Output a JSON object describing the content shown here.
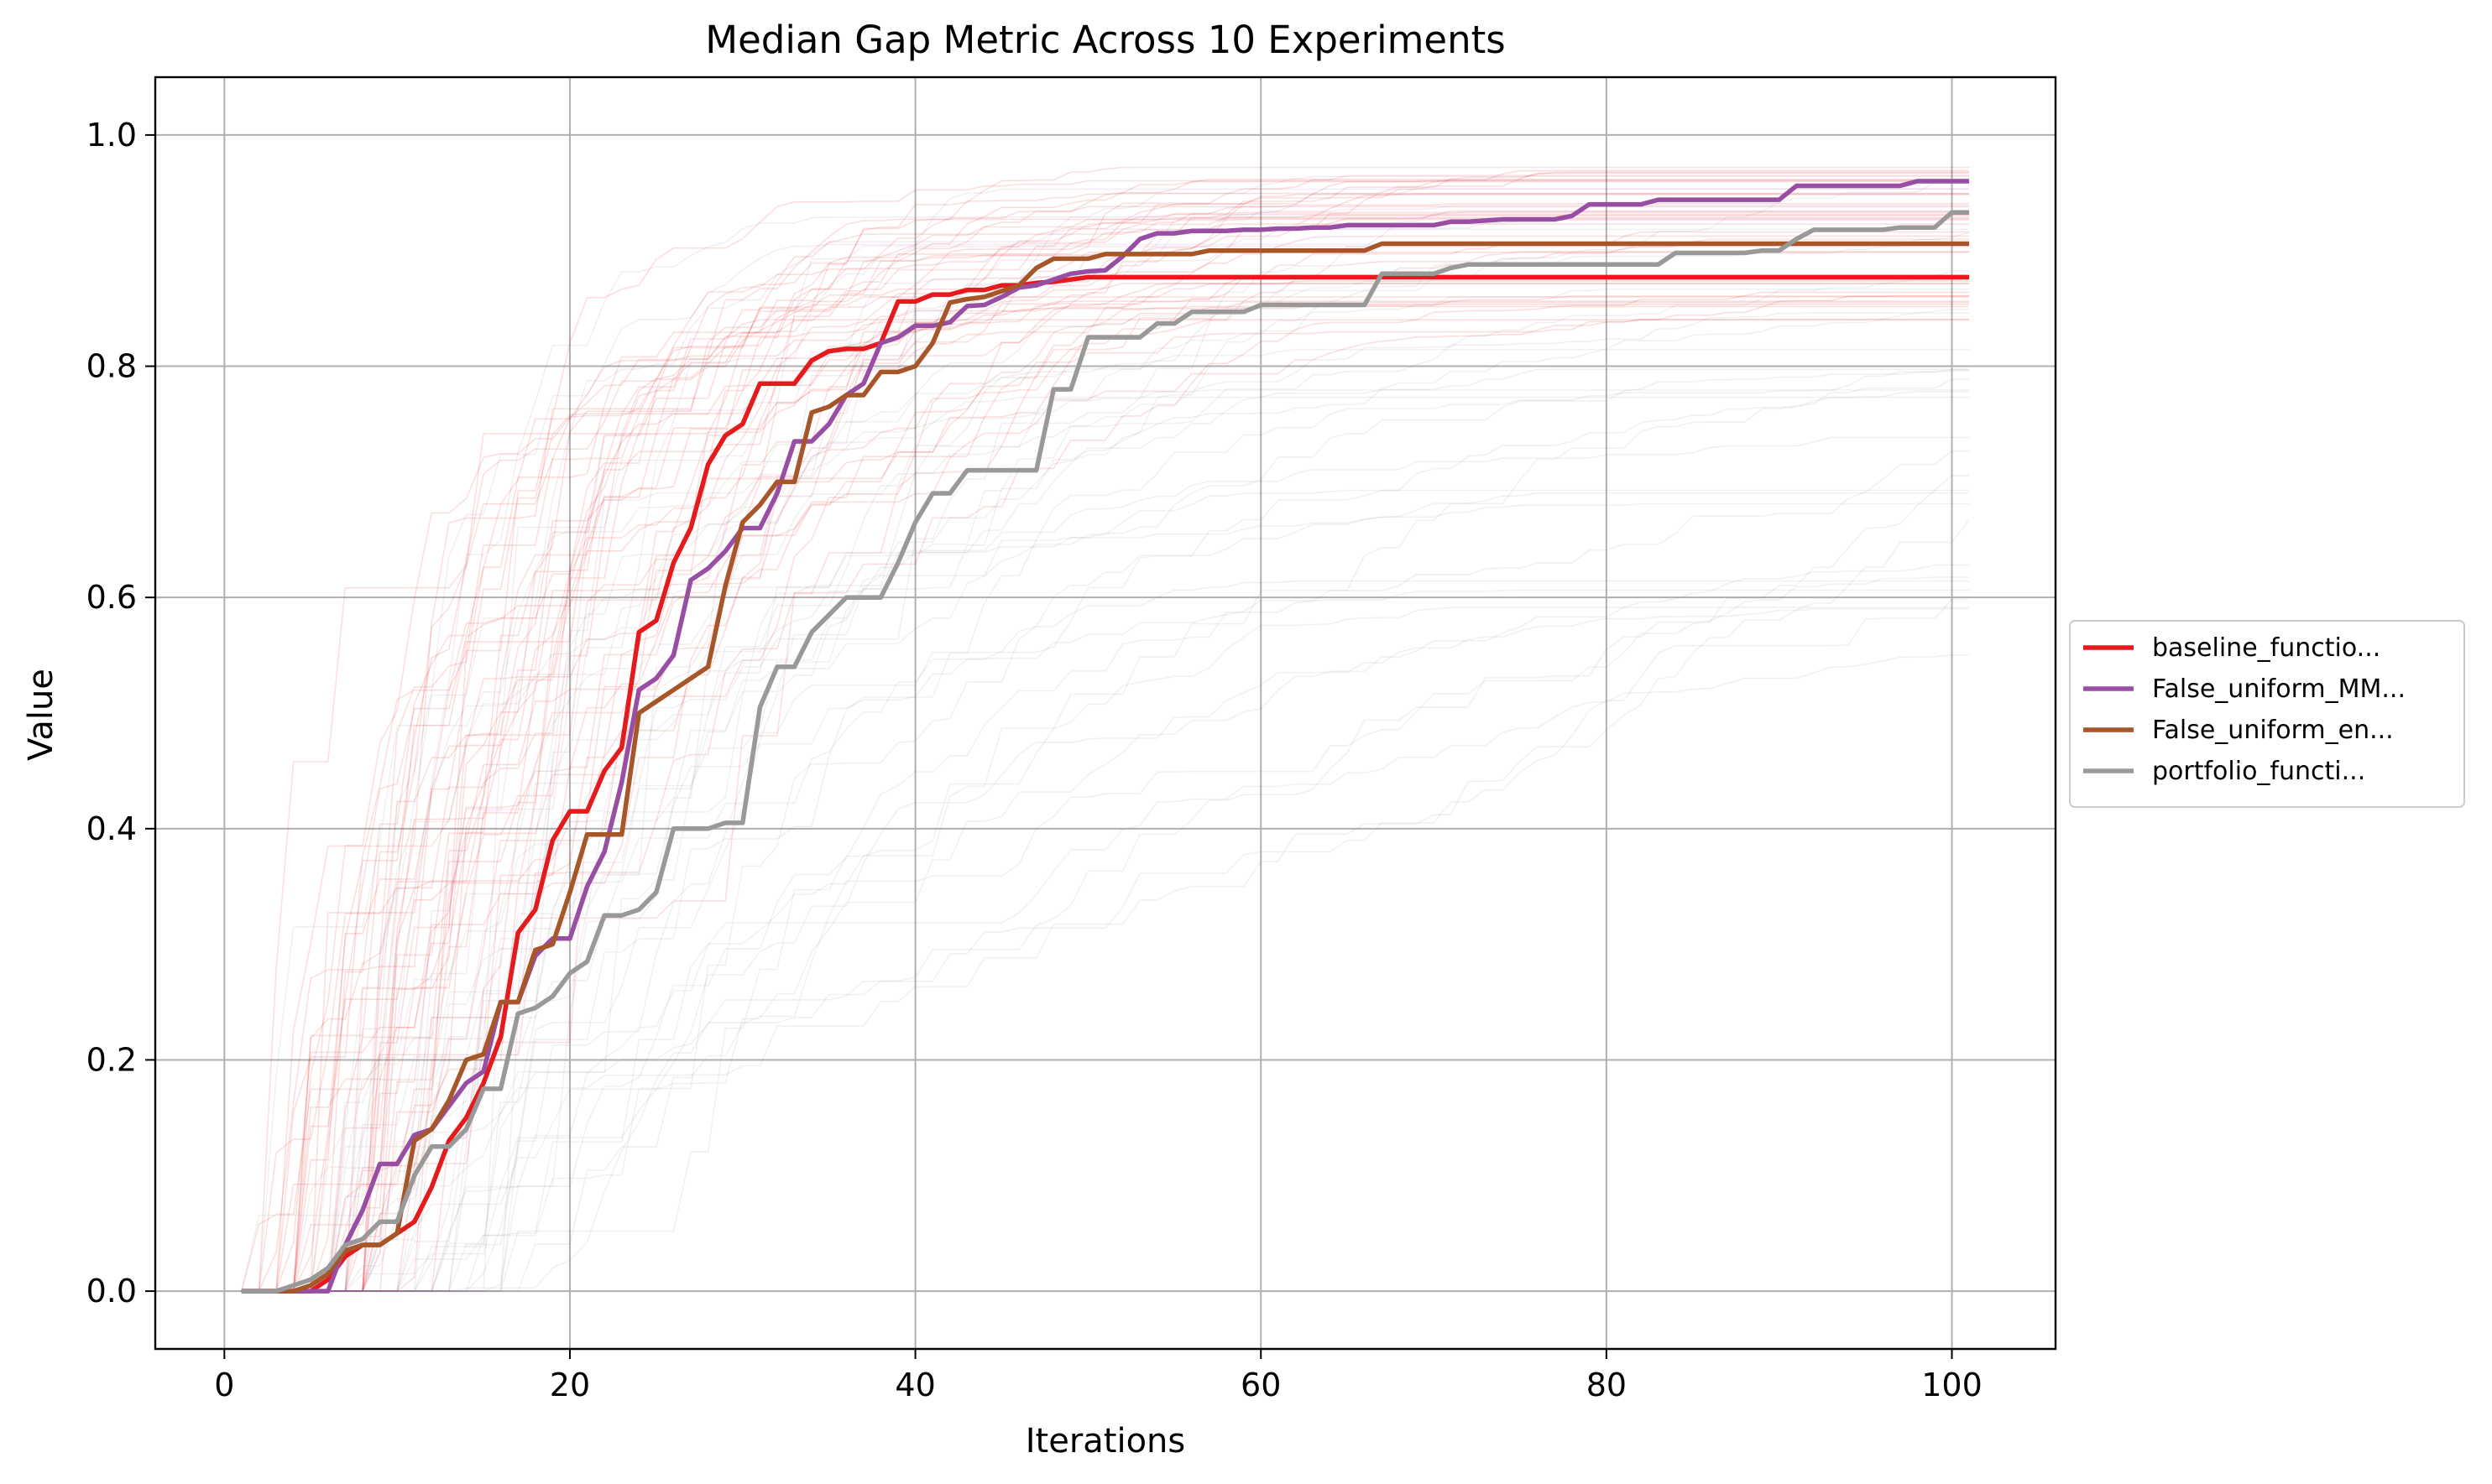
{
  "chart_data": {
    "type": "line",
    "title": "Median Gap Metric Across 10 Experiments",
    "xlabel": "Iterations",
    "ylabel": "Value",
    "xlim": [
      -4,
      106
    ],
    "ylim": [
      -0.05,
      1.05
    ],
    "xticks": [
      0,
      20,
      40,
      60,
      80,
      100
    ],
    "xtick_labels": [
      "0",
      "20",
      "40",
      "60",
      "80",
      "100"
    ],
    "yticks": [
      0.0,
      0.2,
      0.4,
      0.6,
      0.8,
      1.0
    ],
    "ytick_labels": [
      "0.0",
      "0.2",
      "0.4",
      "0.6",
      "0.8",
      "1.0"
    ],
    "grid": true,
    "legend_position": "center-right outside",
    "series": [
      {
        "name": "baseline_functio...",
        "color": "#e41a1c",
        "x": [
          1,
          5,
          6,
          7,
          8,
          9,
          10,
          11,
          12,
          13,
          14,
          15,
          16,
          17,
          18,
          19,
          20,
          21,
          22,
          23,
          24,
          25,
          26,
          27,
          28,
          29,
          30,
          31,
          32,
          33,
          34,
          35,
          36,
          37,
          38,
          39,
          40,
          41,
          42,
          43,
          44,
          45,
          46,
          47,
          48,
          49,
          50,
          101
        ],
        "values": [
          0,
          0,
          0.01,
          0.03,
          0.04,
          0.04,
          0.05,
          0.06,
          0.09,
          0.13,
          0.15,
          0.18,
          0.22,
          0.31,
          0.33,
          0.39,
          0.415,
          0.415,
          0.45,
          0.47,
          0.57,
          0.58,
          0.63,
          0.66,
          0.715,
          0.74,
          0.75,
          0.785,
          0.785,
          0.785,
          0.805,
          0.813,
          0.815,
          0.815,
          0.82,
          0.856,
          0.856,
          0.862,
          0.862,
          0.866,
          0.866,
          0.87,
          0.87,
          0.872,
          0.873,
          0.875,
          0.877,
          0.877
        ]
      },
      {
        "name": "False_uniform_MM...",
        "color": "#984ea3",
        "x": [
          1,
          6,
          7,
          8,
          9,
          10,
          11,
          12,
          13,
          14,
          15,
          16,
          17,
          18,
          19,
          20,
          21,
          22,
          23,
          24,
          25,
          26,
          27,
          28,
          29,
          30,
          31,
          32,
          33,
          34,
          35,
          36,
          37,
          38,
          39,
          40,
          41,
          42,
          43,
          44,
          45,
          46,
          47,
          48,
          49,
          50,
          51,
          52,
          53,
          54,
          55,
          56,
          57,
          58,
          59,
          60,
          61,
          62,
          63,
          64,
          65,
          66,
          67,
          68,
          69,
          70,
          71,
          72,
          73,
          74,
          75,
          76,
          77,
          78,
          79,
          80,
          81,
          82,
          83,
          84,
          85,
          86,
          87,
          88,
          89,
          90,
          91,
          92,
          93,
          94,
          95,
          96,
          97,
          98,
          99,
          100,
          101
        ],
        "values": [
          0,
          0,
          0.04,
          0.07,
          0.11,
          0.11,
          0.135,
          0.14,
          0.16,
          0.18,
          0.19,
          0.25,
          0.25,
          0.29,
          0.305,
          0.305,
          0.35,
          0.38,
          0.44,
          0.52,
          0.53,
          0.55,
          0.615,
          0.625,
          0.64,
          0.66,
          0.66,
          0.69,
          0.735,
          0.735,
          0.75,
          0.775,
          0.785,
          0.82,
          0.825,
          0.835,
          0.835,
          0.838,
          0.852,
          0.853,
          0.86,
          0.868,
          0.87,
          0.875,
          0.88,
          0.882,
          0.883,
          0.895,
          0.91,
          0.915,
          0.915,
          0.917,
          0.917,
          0.917,
          0.918,
          0.918,
          0.919,
          0.919,
          0.92,
          0.92,
          0.922,
          0.922,
          0.922,
          0.922,
          0.922,
          0.922,
          0.925,
          0.925,
          0.926,
          0.927,
          0.927,
          0.927,
          0.927,
          0.93,
          0.94,
          0.94,
          0.94,
          0.94,
          0.944,
          0.944,
          0.944,
          0.944,
          0.944,
          0.944,
          0.944,
          0.944,
          0.956,
          0.956,
          0.956,
          0.956,
          0.956,
          0.956,
          0.956,
          0.96,
          0.96,
          0.96,
          0.96
        ]
      },
      {
        "name": "False_uniform_en...",
        "color": "#a65628",
        "x": [
          1,
          4,
          5,
          6,
          7,
          8,
          9,
          10,
          11,
          12,
          13,
          14,
          15,
          16,
          17,
          18,
          19,
          20,
          21,
          22,
          23,
          24,
          25,
          26,
          27,
          28,
          29,
          30,
          31,
          32,
          33,
          34,
          35,
          36,
          37,
          38,
          39,
          40,
          41,
          42,
          43,
          44,
          45,
          46,
          47,
          48,
          49,
          50,
          51,
          52,
          53,
          54,
          55,
          56,
          57,
          58,
          59,
          60,
          61,
          62,
          63,
          64,
          65,
          66,
          67,
          68,
          101
        ],
        "values": [
          0,
          0,
          0.005,
          0.015,
          0.035,
          0.04,
          0.04,
          0.05,
          0.13,
          0.14,
          0.165,
          0.2,
          0.205,
          0.25,
          0.25,
          0.295,
          0.3,
          0.345,
          0.395,
          0.395,
          0.395,
          0.5,
          0.51,
          0.52,
          0.53,
          0.54,
          0.61,
          0.665,
          0.68,
          0.7,
          0.7,
          0.76,
          0.765,
          0.775,
          0.775,
          0.795,
          0.795,
          0.8,
          0.82,
          0.855,
          0.858,
          0.86,
          0.865,
          0.87,
          0.885,
          0.893,
          0.893,
          0.893,
          0.897,
          0.897,
          0.897,
          0.897,
          0.897,
          0.897,
          0.9,
          0.9,
          0.9,
          0.9,
          0.9,
          0.9,
          0.9,
          0.9,
          0.9,
          0.9,
          0.906,
          0.906,
          0.906
        ]
      },
      {
        "name": "portfolio_functi...",
        "color": "#999999",
        "x": [
          1,
          3,
          4,
          5,
          6,
          7,
          8,
          9,
          10,
          11,
          12,
          13,
          14,
          15,
          16,
          17,
          18,
          19,
          20,
          21,
          22,
          23,
          24,
          25,
          26,
          27,
          28,
          29,
          30,
          31,
          32,
          33,
          34,
          35,
          36,
          37,
          38,
          39,
          40,
          41,
          42,
          43,
          44,
          45,
          46,
          47,
          48,
          49,
          50,
          51,
          52,
          53,
          54,
          55,
          56,
          57,
          58,
          59,
          60,
          61,
          62,
          63,
          64,
          65,
          66,
          67,
          68,
          69,
          70,
          71,
          72,
          73,
          74,
          75,
          76,
          77,
          78,
          79,
          80,
          81,
          82,
          83,
          84,
          85,
          86,
          87,
          88,
          89,
          90,
          91,
          92,
          93,
          94,
          95,
          96,
          97,
          98,
          99,
          100,
          101
        ],
        "values": [
          0,
          0,
          0.005,
          0.01,
          0.02,
          0.04,
          0.045,
          0.06,
          0.06,
          0.1,
          0.125,
          0.125,
          0.14,
          0.175,
          0.175,
          0.24,
          0.245,
          0.255,
          0.275,
          0.285,
          0.325,
          0.325,
          0.33,
          0.345,
          0.4,
          0.4,
          0.4,
          0.405,
          0.405,
          0.505,
          0.54,
          0.54,
          0.57,
          0.585,
          0.6,
          0.6,
          0.6,
          0.63,
          0.665,
          0.69,
          0.69,
          0.71,
          0.71,
          0.71,
          0.71,
          0.71,
          0.78,
          0.78,
          0.825,
          0.825,
          0.825,
          0.825,
          0.837,
          0.837,
          0.847,
          0.847,
          0.847,
          0.847,
          0.853,
          0.853,
          0.853,
          0.853,
          0.853,
          0.853,
          0.853,
          0.88,
          0.88,
          0.88,
          0.88,
          0.885,
          0.888,
          0.888,
          0.888,
          0.888,
          0.888,
          0.888,
          0.888,
          0.888,
          0.888,
          0.888,
          0.888,
          0.888,
          0.898,
          0.898,
          0.898,
          0.898,
          0.898,
          0.9,
          0.9,
          0.91,
          0.918,
          0.918,
          0.918,
          0.918,
          0.918,
          0.92,
          0.92,
          0.92,
          0.933,
          0.933
        ]
      }
    ]
  }
}
